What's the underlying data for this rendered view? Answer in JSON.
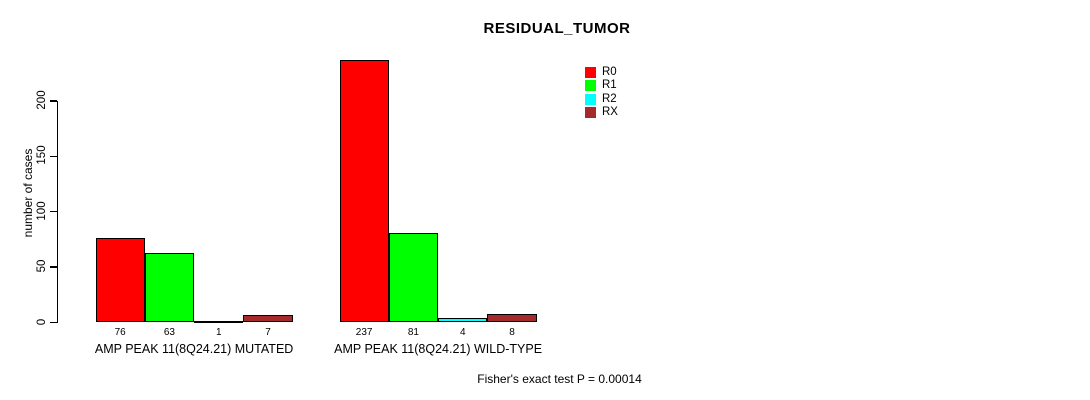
{
  "title": "RESIDUAL_TUMOR",
  "footer": "Fisher's exact test P = 0.00014",
  "chart_data": {
    "type": "bar",
    "title": "RESIDUAL_TUMOR",
    "xlabel": "",
    "ylabel": "number of cases",
    "categories": [
      "AMP PEAK 11(8Q24.21) MUTATED",
      "AMP PEAK 11(8Q24.21) WILD-TYPE"
    ],
    "series": [
      {
        "name": "R0",
        "color": "#ff0000",
        "values": [
          76,
          237
        ]
      },
      {
        "name": "R1",
        "color": "#00ff00",
        "values": [
          63,
          81
        ]
      },
      {
        "name": "R2",
        "color": "#00ffff",
        "values": [
          1,
          4
        ]
      },
      {
        "name": "RX",
        "color": "#a52a2a",
        "values": [
          7,
          8
        ]
      }
    ],
    "bar_value_labels": [
      [
        76,
        63,
        1,
        7
      ],
      [
        237,
        81,
        4,
        8
      ]
    ],
    "yticks": [
      0,
      50,
      100,
      150,
      200
    ],
    "ylim": [
      0,
      240
    ],
    "grid": false,
    "legend_position": "top-right",
    "annotation": "Fisher's exact test P = 0.00014"
  }
}
